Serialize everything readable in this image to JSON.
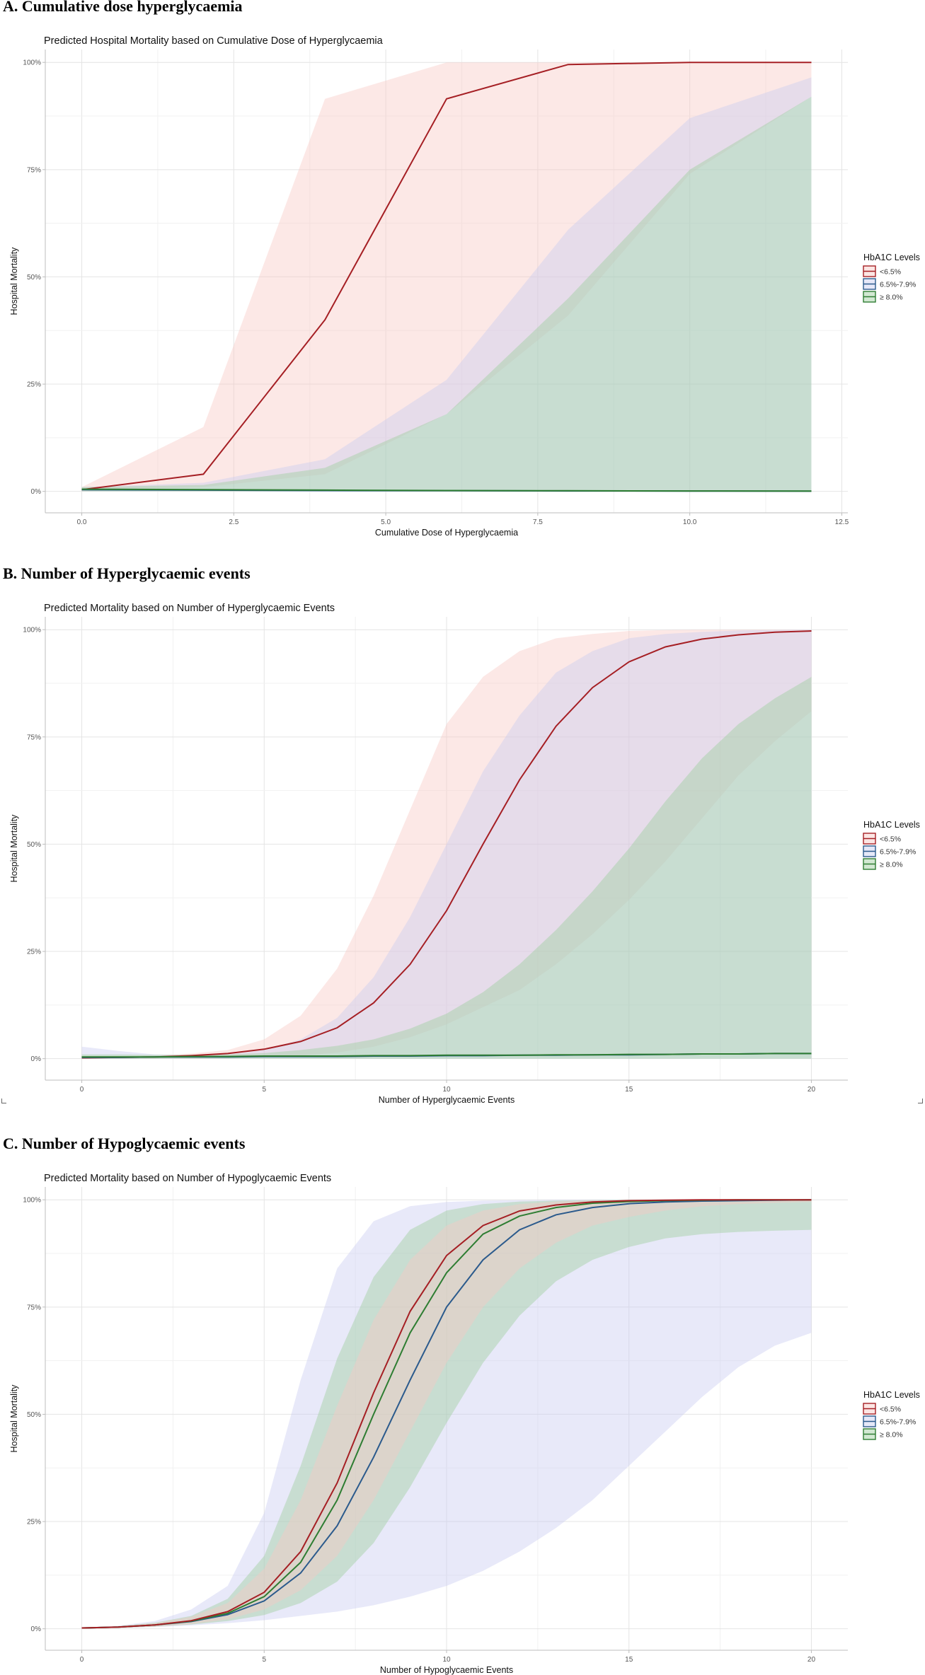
{
  "headings": {
    "a": "A.  Cumulative dose hyperglycaemia",
    "b": "B. Number of Hyperglycaemic events",
    "c": "C. Number of Hypoglycaemic events"
  },
  "colors": {
    "lt65": "#a51f24",
    "mid": "#2b5a8c",
    "ge8": "#2e7d32",
    "band_lt65": "#f8c7c4",
    "band_mid": "#c7cbf0",
    "band_ge8": "#9ccd9c"
  },
  "chart_data": [
    {
      "type": "line",
      "title": "Predicted Hospital Mortality based on Cumulative Dose of Hyperglycaemia",
      "xlabel": "Cumulative Dose of Hyperglycaemia",
      "ylabel": "Hospital Mortality",
      "xlim": [
        -0.6,
        12.6
      ],
      "ylim": [
        -0.05,
        1.03
      ],
      "xticks": [
        0,
        2.5,
        5,
        7.5,
        10,
        12.5
      ],
      "xtick_labels": [
        "0.0",
        "2.5",
        "5.0",
        "7.5",
        "10.0",
        "12.5"
      ],
      "yticks": [
        0,
        0.25,
        0.5,
        0.75,
        1
      ],
      "ytick_labels": [
        "0%",
        "25%",
        "50%",
        "75%",
        "100%"
      ],
      "legend": {
        "title": "HbA1C Levels",
        "position": "right",
        "entries": [
          "<6.5%",
          "6.5%-7.9%",
          "≥ 8.0%"
        ]
      },
      "series": [
        {
          "name": "<6.5%",
          "color_key": "lt65",
          "x": [
            0,
            2,
            4,
            6,
            8,
            10,
            12
          ],
          "y": [
            0.004,
            0.04,
            0.4,
            0.915,
            0.995,
            1.0,
            1.0
          ],
          "lower": [
            0.0,
            0.01,
            0.04,
            0.18,
            0.41,
            0.74,
            0.92
          ],
          "upper": [
            0.01,
            0.15,
            0.915,
            1.0,
            1.0,
            1.0,
            1.0
          ]
        },
        {
          "name": "6.5%-7.9%",
          "color_key": "mid",
          "x": [
            0,
            2,
            4,
            6,
            8,
            10,
            12
          ],
          "y": [
            0.004,
            0.003,
            0.002,
            0.0015,
            0.001,
            0.0008,
            0.0005
          ],
          "lower": [
            0,
            0,
            0,
            0,
            0,
            0,
            0
          ],
          "upper": [
            0.01,
            0.02,
            0.075,
            0.26,
            0.61,
            0.87,
            0.965
          ]
        },
        {
          "name": "≥ 8.0%",
          "color_key": "ge8",
          "x": [
            0,
            2,
            4,
            6,
            8,
            10,
            12
          ],
          "y": [
            0.005,
            0.004,
            0.003,
            0.002,
            0.0015,
            0.001,
            0.0008
          ],
          "lower": [
            0,
            0,
            0,
            0,
            0,
            0,
            0
          ],
          "upper": [
            0.01,
            0.015,
            0.055,
            0.18,
            0.45,
            0.75,
            0.92
          ]
        }
      ]
    },
    {
      "type": "line",
      "title": "Predicted Mortality based on Number of Hyperglycaemic Events",
      "xlabel": "Number of Hyperglycaemic Events",
      "ylabel": "Hospital Mortality",
      "xlim": [
        -1.0,
        21.0
      ],
      "ylim": [
        -0.05,
        1.03
      ],
      "xticks": [
        0,
        5,
        10,
        15,
        20
      ],
      "xtick_labels": [
        "0",
        "5",
        "10",
        "15",
        "20"
      ],
      "yticks": [
        0,
        0.25,
        0.5,
        0.75,
        1
      ],
      "ytick_labels": [
        "0%",
        "25%",
        "50%",
        "75%",
        "100%"
      ],
      "legend": {
        "title": "HbA1C Levels",
        "position": "right",
        "entries": [
          "<6.5%",
          "6.5%-7.9%",
          "≥ 8.0%"
        ]
      },
      "series": [
        {
          "name": "<6.5%",
          "color_key": "lt65",
          "x": [
            0,
            1,
            2,
            3,
            4,
            5,
            6,
            7,
            8,
            9,
            10,
            11,
            12,
            13,
            14,
            15,
            16,
            17,
            18,
            19,
            20
          ],
          "y": [
            0.002,
            0.003,
            0.004,
            0.007,
            0.012,
            0.022,
            0.04,
            0.072,
            0.13,
            0.22,
            0.345,
            0.5,
            0.65,
            0.775,
            0.865,
            0.925,
            0.96,
            0.978,
            0.988,
            0.994,
            0.997
          ],
          "lower": [
            0,
            0,
            0,
            0,
            0.001,
            0.003,
            0.007,
            0.014,
            0.028,
            0.05,
            0.08,
            0.12,
            0.16,
            0.22,
            0.29,
            0.37,
            0.46,
            0.56,
            0.66,
            0.74,
            0.81
          ],
          "upper": [
            0.005,
            0.006,
            0.008,
            0.012,
            0.02,
            0.045,
            0.1,
            0.21,
            0.38,
            0.58,
            0.78,
            0.89,
            0.95,
            0.98,
            0.99,
            0.997,
            0.999,
            1,
            1,
            1,
            1
          ]
        },
        {
          "name": "6.5%-7.9%",
          "color_key": "mid",
          "x": [
            0,
            1,
            2,
            3,
            4,
            5,
            6,
            7,
            8,
            9,
            10,
            11,
            12,
            13,
            14,
            15,
            16,
            17,
            18,
            19,
            20
          ],
          "y": [
            0.003,
            0.003,
            0.004,
            0.004,
            0.004,
            0.005,
            0.005,
            0.005,
            0.006,
            0.006,
            0.007,
            0.007,
            0.008,
            0.008,
            0.009,
            0.009,
            0.01,
            0.011,
            0.011,
            0.012,
            0.012
          ],
          "lower": [
            0,
            0,
            0,
            0,
            0,
            0,
            0,
            0,
            0,
            0,
            0,
            0,
            0,
            0,
            0,
            0,
            0,
            0,
            0,
            0,
            0
          ],
          "upper": [
            0.028,
            0.018,
            0.01,
            0.008,
            0.01,
            0.02,
            0.045,
            0.095,
            0.19,
            0.33,
            0.5,
            0.67,
            0.8,
            0.9,
            0.95,
            0.98,
            0.99,
            0.995,
            0.998,
            0.999,
            1
          ]
        },
        {
          "name": "≥ 8.0%",
          "color_key": "ge8",
          "x": [
            0,
            1,
            2,
            3,
            4,
            5,
            6,
            7,
            8,
            9,
            10,
            11,
            12,
            13,
            14,
            15,
            16,
            17,
            18,
            19,
            20
          ],
          "y": [
            0.004,
            0.004,
            0.004,
            0.005,
            0.005,
            0.006,
            0.006,
            0.006,
            0.007,
            0.007,
            0.008,
            0.008,
            0.008,
            0.009,
            0.009,
            0.01,
            0.01,
            0.011,
            0.011,
            0.012,
            0.012
          ],
          "lower": [
            0,
            0,
            0,
            0,
            0,
            0,
            0,
            0,
            0,
            0,
            0,
            0,
            0,
            0,
            0,
            0,
            0,
            0,
            0,
            0,
            0
          ],
          "upper": [
            0.01,
            0.01,
            0.009,
            0.009,
            0.01,
            0.013,
            0.02,
            0.03,
            0.045,
            0.07,
            0.105,
            0.155,
            0.22,
            0.3,
            0.39,
            0.49,
            0.6,
            0.7,
            0.78,
            0.84,
            0.89
          ]
        }
      ]
    },
    {
      "type": "line",
      "title": "Predicted Mortality based on Number of Hypoglycaemic Events",
      "xlabel": "Number of Hypoglycaemic Events",
      "ylabel": "Hospital Mortality",
      "xlim": [
        -1.0,
        21.0
      ],
      "ylim": [
        -0.05,
        1.03
      ],
      "xticks": [
        0,
        5,
        10,
        15,
        20
      ],
      "xtick_labels": [
        "0",
        "5",
        "10",
        "15",
        "20"
      ],
      "yticks": [
        0,
        0.25,
        0.5,
        0.75,
        1
      ],
      "ytick_labels": [
        "0%",
        "25%",
        "50%",
        "75%",
        "100%"
      ],
      "legend": {
        "title": "HbA1C Levels",
        "position": "right",
        "entries": [
          "<6.5%",
          "6.5%-7.9%",
          "≥ 8.0%"
        ]
      },
      "series": [
        {
          "name": "6.5%-7.9%",
          "color_key": "mid",
          "x": [
            0,
            1,
            2,
            3,
            4,
            5,
            6,
            7,
            8,
            9,
            10,
            11,
            12,
            13,
            14,
            15,
            16,
            17,
            18,
            19,
            20
          ],
          "y": [
            0.002,
            0.004,
            0.009,
            0.017,
            0.033,
            0.065,
            0.13,
            0.24,
            0.4,
            0.58,
            0.75,
            0.86,
            0.93,
            0.965,
            0.982,
            0.991,
            0.995,
            0.997,
            0.998,
            0.999,
            1
          ],
          "lower": [
            0.001,
            0.002,
            0.004,
            0.008,
            0.013,
            0.02,
            0.03,
            0.04,
            0.055,
            0.075,
            0.1,
            0.135,
            0.18,
            0.235,
            0.3,
            0.38,
            0.46,
            0.54,
            0.61,
            0.66,
            0.69
          ],
          "upper": [
            0.003,
            0.007,
            0.018,
            0.045,
            0.1,
            0.27,
            0.58,
            0.84,
            0.95,
            0.985,
            0.995,
            0.998,
            0.999,
            1,
            1,
            1,
            1,
            1,
            1,
            1,
            1
          ]
        },
        {
          "name": "≥ 8.0%",
          "color_key": "ge8",
          "x": [
            0,
            1,
            2,
            3,
            4,
            5,
            6,
            7,
            8,
            9,
            10,
            11,
            12,
            13,
            14,
            15,
            16,
            17,
            18,
            19,
            20
          ],
          "y": [
            0.002,
            0.004,
            0.009,
            0.018,
            0.036,
            0.075,
            0.155,
            0.3,
            0.5,
            0.69,
            0.83,
            0.92,
            0.962,
            0.982,
            0.992,
            0.996,
            0.998,
            0.999,
            1,
            1,
            1
          ],
          "lower": [
            0.001,
            0.002,
            0.005,
            0.01,
            0.018,
            0.032,
            0.06,
            0.11,
            0.2,
            0.33,
            0.48,
            0.62,
            0.73,
            0.81,
            0.86,
            0.89,
            0.91,
            0.92,
            0.925,
            0.928,
            0.93
          ],
          "upper": [
            0.003,
            0.006,
            0.014,
            0.03,
            0.07,
            0.17,
            0.38,
            0.63,
            0.82,
            0.93,
            0.975,
            0.99,
            0.996,
            0.998,
            0.999,
            1,
            1,
            1,
            1,
            1,
            1
          ]
        },
        {
          "name": "<6.5%",
          "color_key": "lt65",
          "x": [
            0,
            1,
            2,
            3,
            4,
            5,
            6,
            7,
            8,
            9,
            10,
            11,
            12,
            13,
            14,
            15,
            16,
            17,
            18,
            19,
            20
          ],
          "y": [
            0.002,
            0.004,
            0.009,
            0.019,
            0.04,
            0.085,
            0.18,
            0.34,
            0.55,
            0.74,
            0.87,
            0.94,
            0.974,
            0.988,
            0.995,
            0.998,
            0.999,
            1,
            1,
            1,
            1
          ],
          "lower": [
            0.001,
            0.002,
            0.005,
            0.011,
            0.022,
            0.045,
            0.09,
            0.17,
            0.3,
            0.46,
            0.62,
            0.75,
            0.84,
            0.9,
            0.94,
            0.96,
            0.975,
            0.985,
            0.99,
            0.993,
            0.995
          ],
          "upper": [
            0.003,
            0.006,
            0.013,
            0.028,
            0.06,
            0.14,
            0.3,
            0.52,
            0.72,
            0.86,
            0.94,
            0.975,
            0.99,
            0.996,
            0.998,
            0.999,
            1,
            1,
            1,
            1,
            1
          ]
        }
      ]
    }
  ]
}
